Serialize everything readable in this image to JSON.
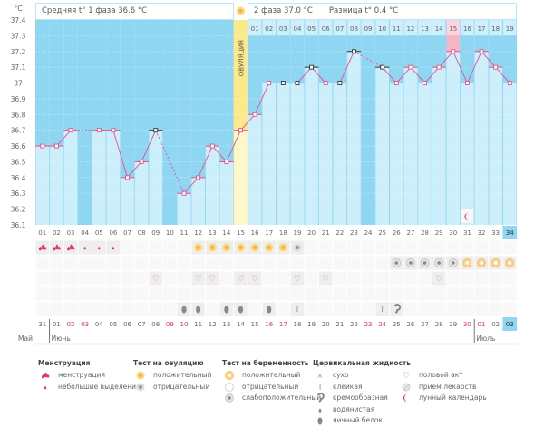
{
  "header": {
    "phase1": "Средняя t° 1 фаза 36.6 °C",
    "phase2": "2 фаза 37.0 °C",
    "diff": "Разница t° 0.4 °C",
    "ovulation_label": "ОВУЛЯЦИЯ",
    "unit": "°C"
  },
  "colors": {
    "dark": "#8fd6f2",
    "light": "#cdeefb",
    "ovulation": "#fce98a",
    "ovulation_light": "#fff6c9",
    "peak": "#f7b6c8",
    "line": "#e8508a",
    "marker_black": "#333333",
    "weekend": "#e8306a"
  },
  "chart_data": {
    "type": "line",
    "ylabel": "°C",
    "ylim": [
      36.1,
      37.4
    ],
    "yticks": [
      "37.4",
      "37.3",
      "37.2",
      "37.1",
      "37",
      "36.9",
      "36.8",
      "36.7",
      "36.6",
      "36.5",
      "36.4",
      "36.3",
      "36.2",
      "36.1"
    ],
    "cycle_days": [
      "01",
      "02",
      "03",
      "04",
      "05",
      "06",
      "07",
      "08",
      "09",
      "10",
      "11",
      "12",
      "13",
      "14",
      "15",
      "16",
      "17",
      "18",
      "19",
      "20",
      "21",
      "22",
      "23",
      "24",
      "25",
      "26",
      "27",
      "28",
      "29",
      "30",
      "31",
      "32",
      "33",
      "34"
    ],
    "temperatures": [
      36.6,
      36.6,
      36.7,
      null,
      36.7,
      36.7,
      36.4,
      36.5,
      36.7,
      null,
      36.3,
      36.4,
      36.6,
      36.5,
      36.7,
      36.8,
      37.0,
      37.0,
      37.0,
      37.1,
      37.0,
      37.0,
      37.2,
      null,
      37.1,
      37.0,
      37.1,
      37.0,
      37.1,
      37.2,
      37.0,
      37.2,
      37.1,
      37.0
    ],
    "marker_type": [
      "p",
      "p",
      "p",
      "",
      "p",
      "p",
      "p",
      "p",
      "b",
      "",
      "p",
      "p",
      "p",
      "p",
      "p",
      "p",
      "p",
      "b",
      "b",
      "b",
      "p",
      "b",
      "b",
      "",
      "b",
      "p",
      "p",
      "p",
      "p",
      "p",
      "p",
      "p",
      "p",
      "p"
    ],
    "ovulation_day": 15,
    "phase2_days": [
      "01",
      "02",
      "03",
      "04",
      "05",
      "06",
      "07",
      "08",
      "09",
      "10",
      "11",
      "12",
      "13",
      "14",
      "15",
      "16",
      "17",
      "18",
      "19"
    ],
    "phase2_highlight": "15",
    "current_day": "34",
    "moon_day": 31,
    "dates": [
      "31",
      "01",
      "02",
      "03",
      "04",
      "05",
      "06",
      "07",
      "08",
      "09",
      "10",
      "11",
      "12",
      "13",
      "14",
      "15",
      "16",
      "17",
      "18",
      "19",
      "20",
      "21",
      "22",
      "23",
      "24",
      "25",
      "26",
      "27",
      "28",
      "29",
      "30",
      "01",
      "02",
      "03"
    ],
    "weekend_dates_idx": [
      2,
      3,
      9,
      10,
      16,
      17,
      23,
      24,
      30,
      31
    ],
    "months": [
      {
        "label": "Май",
        "start": 0
      },
      {
        "label": "Июнь",
        "start": 1
      },
      {
        "label": "Июль",
        "start": 31
      }
    ],
    "rows": {
      "menstruation_ovtest": {
        "1": "menses",
        "2": "menses",
        "3": "menses",
        "4": "spot",
        "5": "spot",
        "6": "spot",
        "12": "ov_pos",
        "13": "ov_pos",
        "14": "ov_pos",
        "15": "ov_pos",
        "16": "ov_pos",
        "17": "ov_pos",
        "18": "ov_pos",
        "19": "ov_neg"
      },
      "pregnancy": {
        "26": "preg_weak",
        "27": "preg_weak",
        "28": "preg_weak",
        "29": "preg_weak",
        "30": "preg_weak",
        "31": "preg_pos",
        "32": "preg_pos",
        "33": "preg_pos",
        "34": "preg_pos"
      },
      "sex": {
        "9": "heart",
        "12": "heart",
        "13": "heart",
        "15": "heart",
        "16": "heart",
        "19": "heart",
        "21": "heart",
        "29": "heart"
      },
      "medication": {},
      "fluid": {
        "11": "eggwhite",
        "12": "eggwhite",
        "14": "eggwhite",
        "15": "eggwhite",
        "17": "eggwhite",
        "19": "sticky",
        "25": "sticky",
        "26": "creamy"
      }
    }
  },
  "legend": [
    {
      "title": "Менструация",
      "items": [
        {
          "icon": "menses",
          "label": "менструация"
        },
        {
          "icon": "spot",
          "label": "небольшие выделения"
        }
      ]
    },
    {
      "title": "Тест на овуляцию",
      "items": [
        {
          "icon": "ov_pos",
          "label": "положительный"
        },
        {
          "icon": "ov_neg",
          "label": "отрицательный"
        }
      ]
    },
    {
      "title": "Тест на беременность",
      "items": [
        {
          "icon": "preg_pos",
          "label": "положительный"
        },
        {
          "icon": "preg_neg",
          "label": "отрицательный"
        },
        {
          "icon": "preg_weak",
          "label": "слабоположительный"
        }
      ]
    },
    {
      "title": "Цервикальная жидкость",
      "items": [
        {
          "icon": "dry",
          "label": "сухо"
        },
        {
          "icon": "sticky",
          "label": "клейкая"
        },
        {
          "icon": "creamy",
          "label": "кремообразная"
        },
        {
          "icon": "watery",
          "label": "водянистая"
        },
        {
          "icon": "eggwhite",
          "label": "яичный белок"
        }
      ]
    },
    {
      "title": "",
      "items": [
        {
          "icon": "heart",
          "label": "половой акт"
        },
        {
          "icon": "pill",
          "label": "прием лекарств"
        },
        {
          "icon": "moon",
          "label": "лунный календарь"
        }
      ]
    }
  ]
}
